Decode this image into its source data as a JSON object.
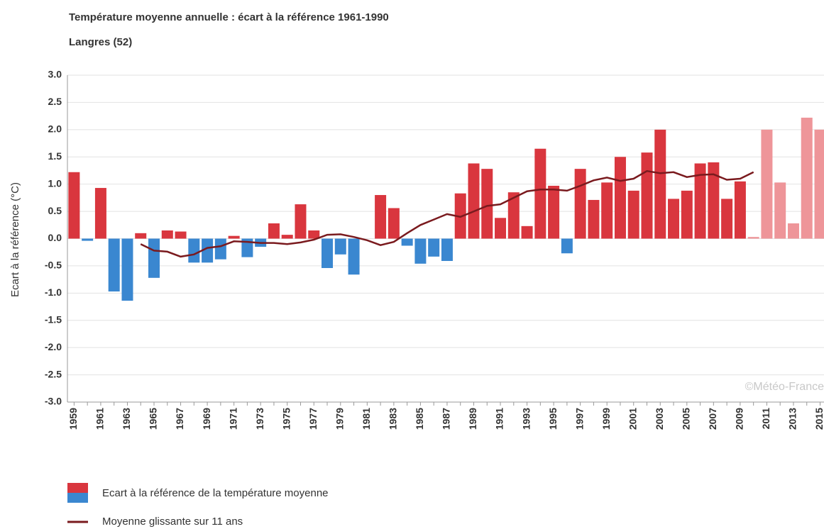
{
  "chart_data": {
    "type": "bar",
    "title": "Température moyenne annuelle : écart à la référence 1961-1990",
    "subtitle": "Langres (52)",
    "y_label": "Ecart à la référence (°C)",
    "watermark": "©Météo-France",
    "categories": [
      "1959",
      null,
      "1961",
      null,
      "1963",
      null,
      "1965",
      null,
      "1967",
      null,
      "1969",
      null,
      "1971",
      null,
      "1973",
      null,
      "1975",
      null,
      "1977",
      null,
      "1979",
      null,
      "1981",
      null,
      "1983",
      null,
      "1985",
      null,
      "1987",
      null,
      "1989",
      null,
      "1991",
      null,
      "1993",
      null,
      "1995",
      null,
      "1997",
      null,
      "1999",
      null,
      "2001",
      null,
      "2003",
      null,
      "2005",
      null,
      "2007",
      null,
      "2009",
      null,
      "2011",
      null,
      "2013",
      null,
      "2015"
    ],
    "series": [
      {
        "name": "Ecart à la référence de la température moyenne",
        "type": "bar",
        "colors": [
          "#d9363e",
          "#3a87d0",
          "#d9363e",
          "#3a87d0",
          "#3a87d0",
          "#d9363e",
          "#3a87d0",
          "#d9363e",
          "#d9363e",
          "#3a87d0",
          "#3a87d0",
          "#3a87d0",
          "#d9363e",
          "#3a87d0",
          "#3a87d0",
          "#d9363e",
          "#d9363e",
          "#d9363e",
          "#d9363e",
          "#3a87d0",
          "#3a87d0",
          "#3a87d0",
          "#d9363e",
          "#d9363e",
          "#d9363e",
          "#3a87d0",
          "#3a87d0",
          "#3a87d0",
          "#3a87d0",
          "#d9363e",
          "#d9363e",
          "#d9363e",
          "#d9363e",
          "#d9363e",
          "#d9363e",
          "#d9363e",
          "#d9363e",
          "#3a87d0",
          "#d9363e",
          "#d9363e",
          "#d9363e",
          "#d9363e",
          "#d9363e",
          "#d9363e",
          "#d9363e",
          "#d9363e",
          "#d9363e",
          "#d9363e",
          "#d9363e",
          "#d9363e",
          "#d9363e",
          "#ee9599",
          "#ee9599",
          "#ee9599",
          "#ee9599",
          "#ee9599",
          "#ee9599"
        ],
        "values": [
          1.22,
          -0.04,
          0.93,
          -0.97,
          -1.14,
          0.1,
          -0.72,
          0.15,
          0.13,
          -0.44,
          -0.44,
          -0.38,
          0.05,
          -0.34,
          -0.15,
          0.28,
          0.07,
          0.63,
          0.15,
          -0.54,
          -0.29,
          -0.66,
          0.0,
          0.8,
          0.56,
          -0.13,
          -0.46,
          -0.33,
          -0.41,
          0.83,
          1.38,
          1.28,
          0.38,
          0.85,
          0.23,
          1.65,
          0.97,
          -0.27,
          1.28,
          0.71,
          1.03,
          1.5,
          0.88,
          1.58,
          2.0,
          0.73,
          0.88,
          1.38,
          1.4,
          0.73,
          1.05,
          0.03,
          2.0,
          1.03,
          0.28,
          2.22,
          2.0
        ]
      },
      {
        "name": "Moyenne glissante sur 11 ans",
        "type": "line",
        "color": "#7a1a1e",
        "values": [
          null,
          null,
          null,
          null,
          null,
          -0.1,
          -0.22,
          -0.24,
          -0.33,
          -0.29,
          -0.17,
          -0.14,
          -0.05,
          -0.06,
          -0.08,
          -0.08,
          -0.1,
          -0.07,
          -0.02,
          0.07,
          0.08,
          0.03,
          -0.03,
          -0.12,
          -0.06,
          0.1,
          0.25,
          0.35,
          0.45,
          0.4,
          0.5,
          0.6,
          0.63,
          0.75,
          0.87,
          0.9,
          0.9,
          0.88,
          0.97,
          1.07,
          1.12,
          1.06,
          1.1,
          1.24,
          1.2,
          1.22,
          1.13,
          1.17,
          1.18,
          1.08,
          1.1,
          1.22,
          null,
          null,
          null,
          null,
          null
        ]
      }
    ],
    "ylim": [
      -3,
      3
    ],
    "yticks": [
      {
        "value": 3,
        "label": "3.0"
      },
      {
        "value": 2.5,
        "label": "2.5"
      },
      {
        "value": 2,
        "label": "2.0"
      },
      {
        "value": 1.5,
        "label": "1.5"
      },
      {
        "value": 1,
        "label": "1.0"
      },
      {
        "value": 0.5,
        "label": "0.5"
      },
      {
        "value": 0,
        "label": "0.0"
      },
      {
        "value": -0.5,
        "label": "-0.5"
      },
      {
        "value": -1,
        "label": "-1.0"
      },
      {
        "value": -1.5,
        "label": "-1.5"
      },
      {
        "value": -2,
        "label": "-2.0"
      },
      {
        "value": -2.5,
        "label": "-2.5"
      },
      {
        "value": -3,
        "label": "-3.0"
      }
    ],
    "grid": true,
    "legend_colors": [
      "#d9363e",
      "#3a87d0"
    ]
  }
}
